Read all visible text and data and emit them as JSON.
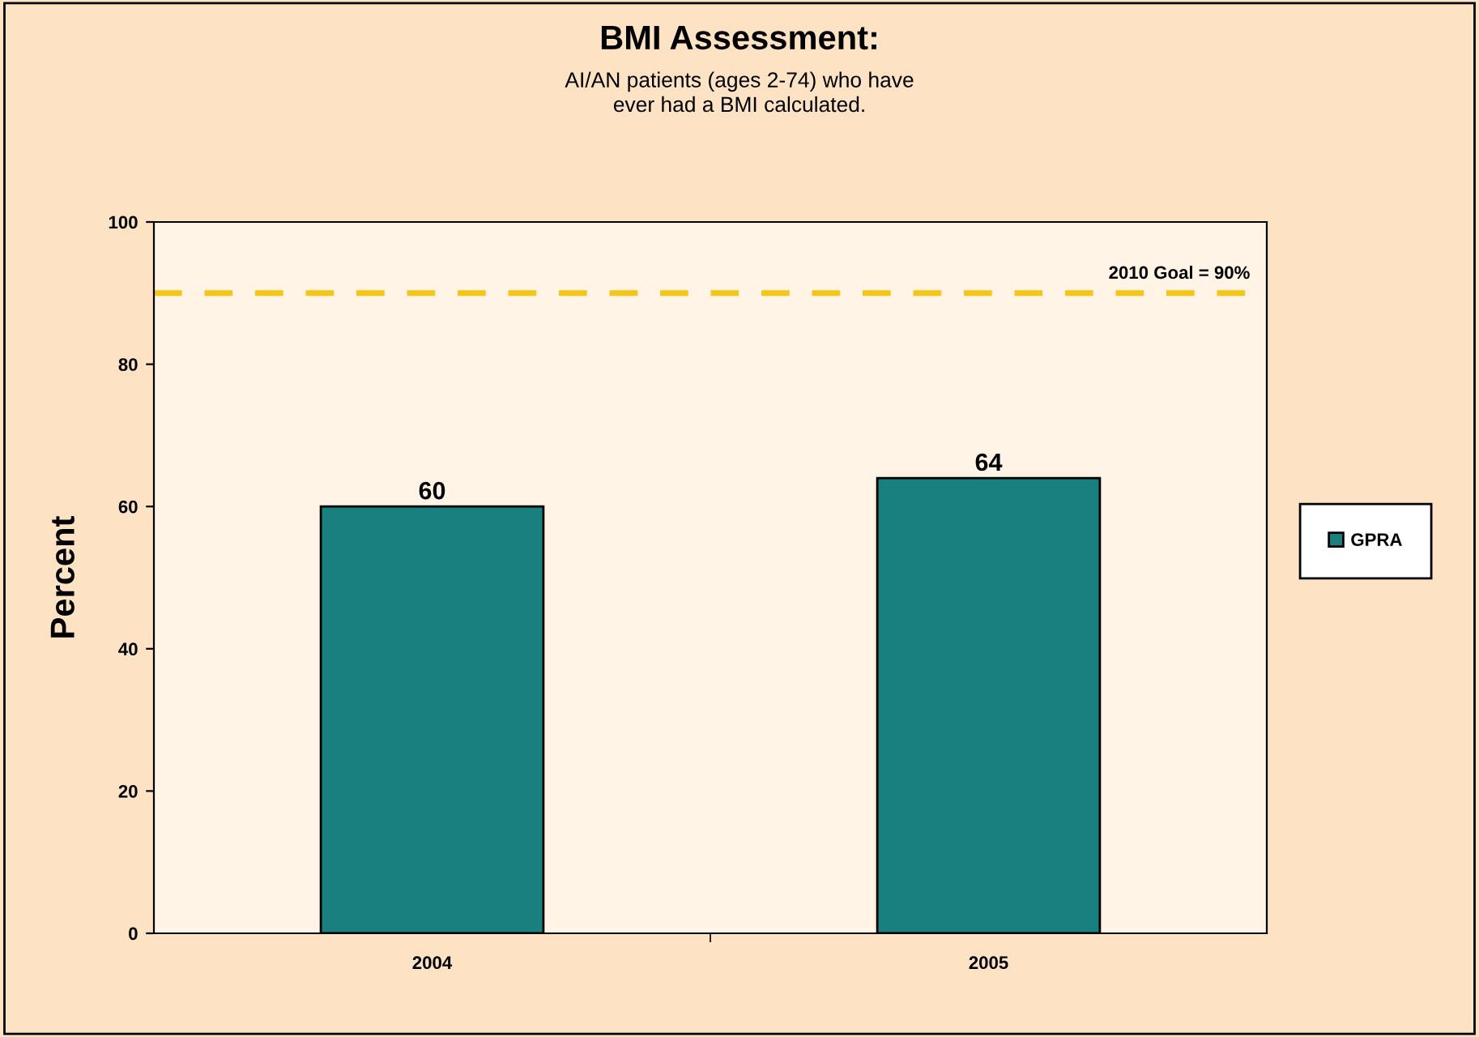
{
  "chart_data": {
    "type": "bar",
    "title": "BMI Assessment:",
    "subtitle": "AI/AN patients (ages 2-74) who have\never had a BMI calculated.",
    "ylabel": "Percent",
    "categories": [
      "2004",
      "2005"
    ],
    "series": [
      {
        "name": "GPRA",
        "color": "#1a7f7f",
        "values": [
          60,
          64
        ]
      }
    ],
    "ylim": [
      0,
      100
    ],
    "yticks": [
      0,
      20,
      40,
      60,
      80,
      100
    ],
    "grid": false,
    "legend": "right",
    "data_labels": true,
    "ref_lines": [
      {
        "axis": "y",
        "value": 90,
        "label": "2010 Goal = 90%",
        "color": "#f5c518",
        "line_style": "dashed"
      }
    ]
  }
}
